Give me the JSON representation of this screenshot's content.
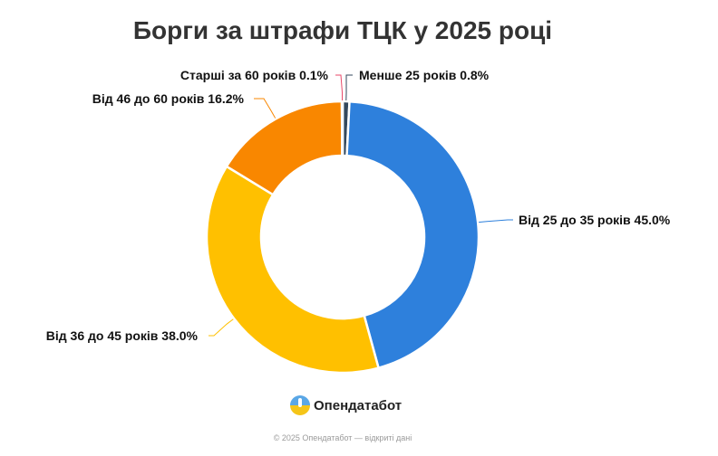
{
  "chart_data": {
    "type": "pie",
    "title": "Борги за штрафи ТЦК у 2025 році",
    "donut": true,
    "slices": [
      {
        "label": "Менше 25 років",
        "value": 0.8,
        "value_text": "0.8%",
        "color": "#34495e"
      },
      {
        "label": "Від 25 до 35 років",
        "value": 45.0,
        "value_text": "45.0%",
        "color": "#2e80dc"
      },
      {
        "label": "Від 36 до 45 років",
        "value": 38.0,
        "value_text": "38.0%",
        "color": "#ffc000"
      },
      {
        "label": "Від 46 до 60 років",
        "value": 16.2,
        "value_text": "16.2%",
        "color": "#f98700"
      },
      {
        "label": "Старші за 60 років",
        "value": 0.1,
        "value_text": "0.1%",
        "color": "#e84a6a"
      }
    ]
  },
  "brand": {
    "name": "Опендатабот",
    "icon": "opendatabot-logo-icon"
  },
  "footer": "© 2025 Опендатабот — відкриті дані"
}
